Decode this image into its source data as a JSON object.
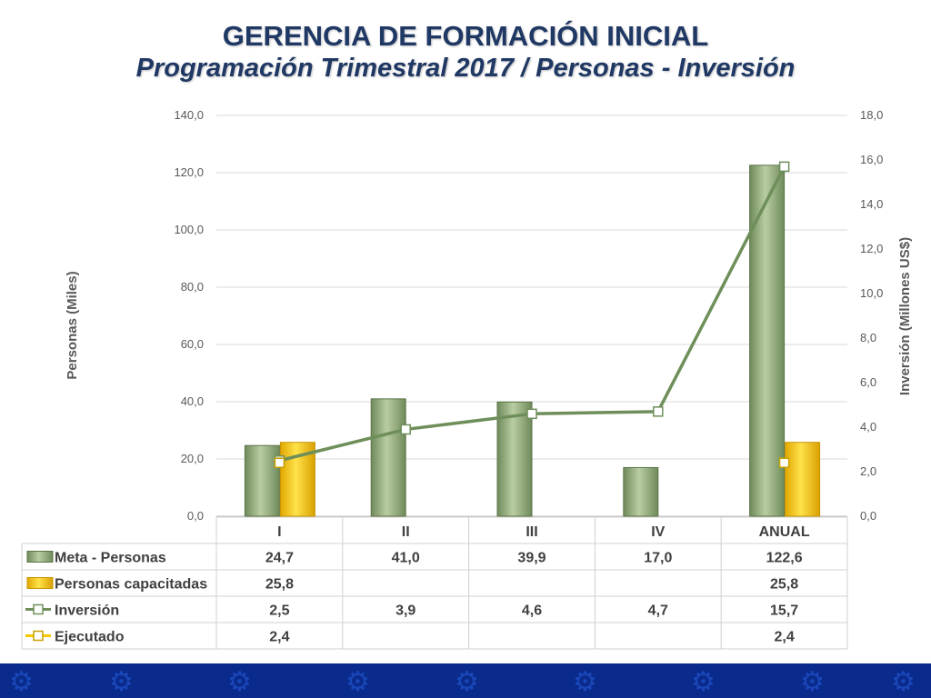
{
  "title": "GERENCIA DE FORMACIÓN INICIAL",
  "subtitle": "Programación Trimestral 2017 / Personas - Inversión",
  "chart_data": {
    "type": "bar",
    "categories": [
      "I",
      "II",
      "III",
      "IV",
      "ANUAL"
    ],
    "y_left": {
      "label": "Personas (Miles)",
      "range": [
        0,
        140
      ],
      "ticks": [
        "0,0",
        "20,0",
        "40,0",
        "60,0",
        "80,0",
        "100,0",
        "120,0",
        "140,0"
      ]
    },
    "y_right": {
      "label": "Inversión (Millones US$)",
      "range": [
        0,
        18
      ],
      "ticks": [
        "0,0",
        "2,0",
        "4,0",
        "6,0",
        "8,0",
        "10,0",
        "12,0",
        "14,0",
        "16,0",
        "18,0"
      ]
    },
    "grid": true,
    "legend": "data-table",
    "series": [
      {
        "name": "Meta - Personas",
        "kind": "bar",
        "axis": "left",
        "color": "#8fa878",
        "values": [
          24.7,
          41.0,
          39.9,
          17.0,
          122.6
        ],
        "labels": [
          "24,7",
          "41,0",
          "39,9",
          "17,0",
          "122,6"
        ]
      },
      {
        "name": "Personas capacitadas",
        "kind": "bar",
        "axis": "left",
        "color": "#f5c800",
        "values": [
          25.8,
          null,
          null,
          null,
          25.8
        ],
        "labels": [
          "25,8",
          "",
          "",
          "",
          "25,8"
        ]
      },
      {
        "name": "Inversión",
        "kind": "line",
        "axis": "right",
        "color": "#6e8f5a",
        "values": [
          2.5,
          3.9,
          4.6,
          4.7,
          15.7
        ],
        "labels": [
          "2,5",
          "3,9",
          "4,6",
          "4,7",
          "15,7"
        ]
      },
      {
        "name": "Ejecutado",
        "kind": "marker",
        "axis": "right",
        "color": "#f5c800",
        "values": [
          2.4,
          null,
          null,
          null,
          2.4
        ],
        "labels": [
          "2,4",
          "",
          "",
          "",
          "2,4"
        ]
      }
    ]
  }
}
